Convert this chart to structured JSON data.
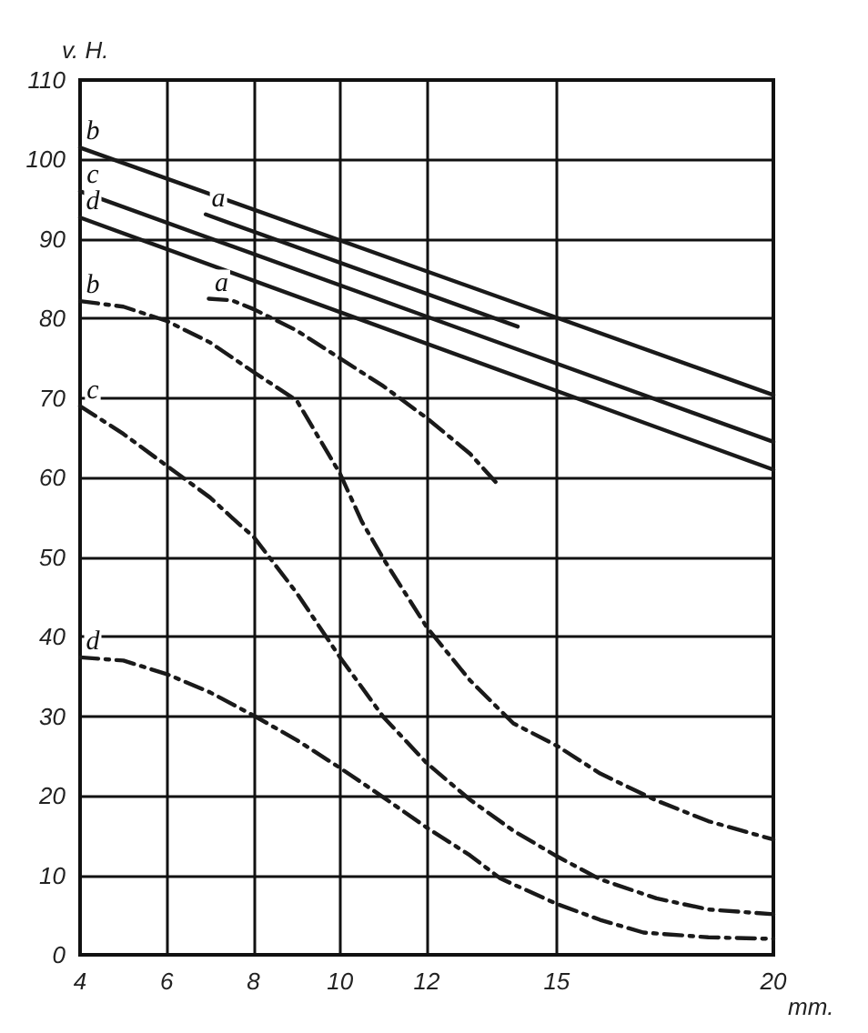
{
  "chart_data": {
    "type": "line",
    "ylabel": "v. H.",
    "xlabel": "mm.",
    "xlim": [
      4,
      20
    ],
    "xticks": [
      4,
      6,
      8,
      10,
      12,
      15,
      20
    ],
    "ylim": [
      0,
      110
    ],
    "yticks": [
      0,
      10,
      20,
      30,
      40,
      50,
      60,
      70,
      80,
      90,
      100,
      110
    ],
    "grid": true,
    "marker": "none",
    "series": [
      {
        "name": "b",
        "color": "#1a1a1a",
        "line_style": "solid",
        "x": [
          4,
          20
        ],
        "values": [
          101.5,
          70.4
        ]
      },
      {
        "name": "c",
        "color": "#1a1a1a",
        "line_style": "solid",
        "x": [
          4,
          20
        ],
        "values": [
          96,
          64.5
        ]
      },
      {
        "name": "d",
        "color": "#1a1a1a",
        "line_style": "solid",
        "x": [
          4,
          20
        ],
        "values": [
          92.7,
          61
        ]
      },
      {
        "name": "a",
        "color": "#1a1a1a",
        "line_style": "solid",
        "x": [
          6.9,
          14.1
        ],
        "values": [
          93.1,
          79
        ]
      },
      {
        "name": "b",
        "color": "#1a1a1a",
        "line_style": "dashed",
        "x": [
          4,
          5,
          6,
          7,
          8,
          9,
          10,
          10.5,
          11,
          12,
          13,
          14,
          15,
          16,
          17.3,
          18.5,
          20
        ],
        "values": [
          82.2,
          81.5,
          79.7,
          77,
          73.3,
          69.7,
          60.5,
          54.5,
          49.8,
          41.2,
          34.5,
          29.1,
          26.3,
          22.8,
          19.4,
          16.8,
          14.5
        ]
      },
      {
        "name": "a",
        "color": "#1a1a1a",
        "line_style": "dashed",
        "x": [
          6.97,
          7.5,
          8,
          9,
          10,
          11,
          12,
          13,
          13.6
        ],
        "values": [
          82.5,
          82.3,
          81.2,
          78.5,
          75,
          71.5,
          67.5,
          63,
          59.4
        ]
      },
      {
        "name": "c",
        "color": "#1a1a1a",
        "line_style": "dashed",
        "x": [
          4,
          5,
          6,
          7,
          7.7,
          8,
          9,
          10,
          11,
          12,
          13,
          14,
          15,
          16,
          17.3,
          18.5,
          20
        ],
        "values": [
          69,
          65.5,
          61.5,
          57.5,
          54,
          52.6,
          45.5,
          37.4,
          29.9,
          24.1,
          19.5,
          15.6,
          12.4,
          9.5,
          7.1,
          5.7,
          5.1
        ]
      },
      {
        "name": "d",
        "color": "#1a1a1a",
        "line_style": "dashed",
        "x": [
          4,
          5,
          6,
          7,
          8,
          9,
          10,
          11,
          12,
          13,
          13.7,
          15,
          16,
          17,
          18.5,
          20
        ],
        "values": [
          37.4,
          37,
          35.3,
          33,
          30.1,
          27,
          23.5,
          19.8,
          16,
          12.5,
          9.6,
          6.4,
          4.4,
          2.8,
          2.2,
          2
        ]
      }
    ]
  }
}
